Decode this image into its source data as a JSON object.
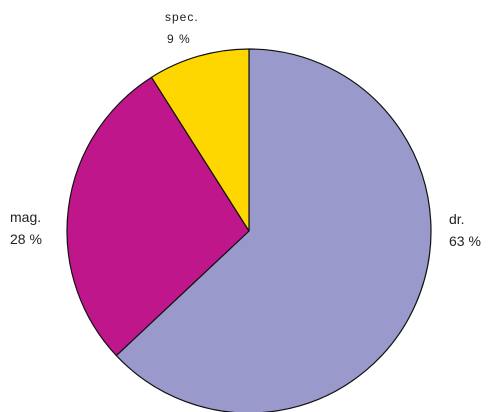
{
  "chart_data": {
    "type": "pie",
    "title": "",
    "slices": [
      {
        "label": "dr.",
        "value": 63,
        "display": "63 %",
        "color": "#9999cc"
      },
      {
        "label": "mag.",
        "value": 28,
        "display": "28 %",
        "color": "#c0168c"
      },
      {
        "label": "spec.",
        "value": 9,
        "display": "9 %",
        "color": "#ffd700"
      }
    ],
    "start_angle_deg": 0,
    "direction": "clockwise",
    "legend": "none"
  }
}
